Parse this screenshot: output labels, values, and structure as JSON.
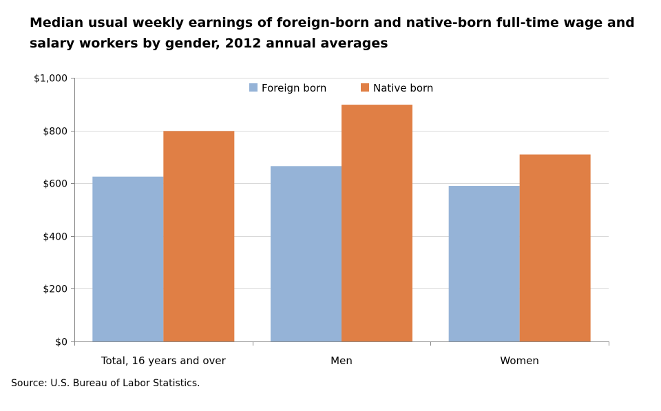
{
  "title_lines": [
    "Median usual weekly earnings of foreign-born and native-born full-time wage and",
    "salary workers by gender, 2012 annual averages"
  ],
  "source": "Source: U.S. Bureau of Labor Statistics.",
  "colors": {
    "foreign": "#95b3d7",
    "native": "#e07f45",
    "grid": "#d9d9d9",
    "axis": "#868686"
  },
  "chart_data": {
    "type": "bar",
    "categories": [
      "Total, 16 years and over",
      "Men",
      "Women"
    ],
    "series": [
      {
        "name": "Foreign born",
        "values": [
          625,
          665,
          590
        ]
      },
      {
        "name": "Native born",
        "values": [
          798,
          898,
          709
        ]
      }
    ],
    "ylim": [
      0,
      1000
    ],
    "yticks": [
      0,
      200,
      400,
      600,
      800,
      1000
    ],
    "ytick_labels": [
      "$0",
      "$200",
      "$400",
      "$600",
      "$800",
      "$1,000"
    ],
    "legend": "top-center",
    "grid": true
  }
}
